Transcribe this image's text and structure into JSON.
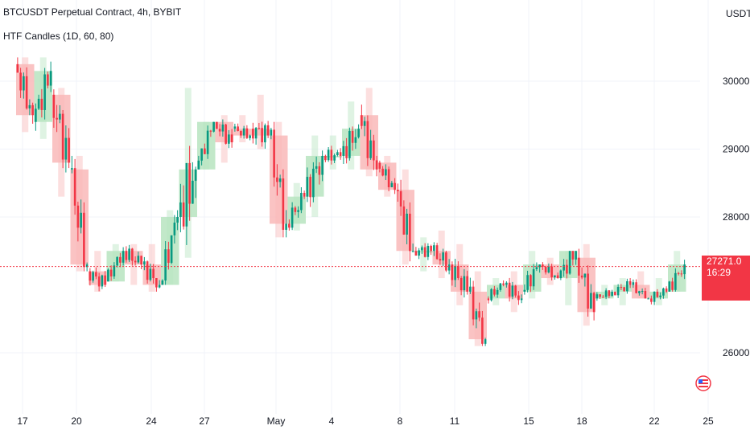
{
  "header": {
    "title": "BTCUSDT Perpetual Contract, 4h, BYBIT",
    "indicator": "HTF Candles (1D, 60, 80)",
    "currency": "USDT"
  },
  "price_badge": {
    "price": "27271.0",
    "countdown": "16:29",
    "color": "#f23645"
  },
  "colors": {
    "up": "#089981",
    "down": "#f23645",
    "htf_up_fill": "#b7e4c0",
    "htf_down_fill": "#f9b9b9",
    "grid": "#f0f3fa"
  },
  "chart_data": {
    "type": "candlestick",
    "symbol": "BTCUSDT",
    "timeframe": "4h",
    "y_ticks": [
      "30000.0",
      "29000.0",
      "28000.0",
      "26000.0"
    ],
    "y_tick_values": [
      30000,
      29000,
      28000,
      26000
    ],
    "x_ticks": [
      "17",
      "20",
      "24",
      "27",
      "May",
      "4",
      "8",
      "11",
      "15",
      "18",
      "22",
      "25"
    ],
    "current_price": 27271.0,
    "price_line_style": "dotted",
    "htf_candles": [
      {
        "t": 0,
        "o": 30250,
        "h": 30350,
        "c": 29500,
        "l": 29250
      },
      {
        "t": 1,
        "o": 29400,
        "h": 30350,
        "c": 30150,
        "l": 29150
      },
      {
        "t": 2,
        "o": 29800,
        "h": 29900,
        "c": 28800,
        "l": 28300
      },
      {
        "t": 3,
        "o": 28700,
        "h": 28900,
        "c": 27300,
        "l": 27200
      },
      {
        "t": 4,
        "o": 27200,
        "h": 27500,
        "c": 27000,
        "l": 26900
      },
      {
        "t": 5,
        "o": 27050,
        "h": 27600,
        "c": 27500,
        "l": 27050
      },
      {
        "t": 6,
        "o": 27500,
        "h": 27600,
        "c": 27300,
        "l": 27000
      },
      {
        "t": 7,
        "o": 27300,
        "h": 27600,
        "c": 27000,
        "l": 26900
      },
      {
        "t": 8,
        "o": 27000,
        "h": 28100,
        "c": 28000,
        "l": 27000
      },
      {
        "t": 9,
        "o": 28000,
        "h": 29900,
        "c": 28700,
        "l": 27400
      },
      {
        "t": 10,
        "o": 28700,
        "h": 29400,
        "c": 29400,
        "l": 28700
      },
      {
        "t": 11,
        "o": 29400,
        "h": 29500,
        "c": 29100,
        "l": 28800
      },
      {
        "t": 12,
        "o": 29300,
        "h": 29500,
        "c": 29200,
        "l": 29100
      },
      {
        "t": 13,
        "o": 29300,
        "h": 29800,
        "c": 29200,
        "l": 29000
      },
      {
        "t": 14,
        "o": 29200,
        "h": 29400,
        "c": 27900,
        "l": 27700
      },
      {
        "t": 15,
        "o": 27900,
        "h": 28500,
        "c": 28300,
        "l": 27800
      },
      {
        "t": 16,
        "o": 28300,
        "h": 29200,
        "c": 28900,
        "l": 28000
      },
      {
        "t": 17,
        "o": 28900,
        "h": 29200,
        "c": 28900,
        "l": 28700
      },
      {
        "t": 18,
        "o": 28900,
        "h": 29700,
        "c": 29300,
        "l": 28700
      },
      {
        "t": 19,
        "o": 29500,
        "h": 29900,
        "c": 28700,
        "l": 28600
      },
      {
        "t": 20,
        "o": 28800,
        "h": 28900,
        "c": 28400,
        "l": 28300
      },
      {
        "t": 21,
        "o": 28400,
        "h": 28700,
        "c": 27500,
        "l": 27300
      },
      {
        "t": 22,
        "o": 27500,
        "h": 27700,
        "c": 27500,
        "l": 27200
      },
      {
        "t": 23,
        "o": 27500,
        "h": 27800,
        "c": 27300,
        "l": 27100
      },
      {
        "t": 24,
        "o": 27300,
        "h": 27600,
        "c": 26900,
        "l": 26700
      },
      {
        "t": 25,
        "o": 26900,
        "h": 27200,
        "c": 26200,
        "l": 26100
      },
      {
        "t": 26,
        "o": 26800,
        "h": 27100,
        "c": 27000,
        "l": 26700
      },
      {
        "t": 27,
        "o": 27000,
        "h": 27200,
        "c": 26800,
        "l": 26600
      },
      {
        "t": 28,
        "o": 26900,
        "h": 27500,
        "c": 27300,
        "l": 26800
      },
      {
        "t": 29,
        "o": 27300,
        "h": 27400,
        "c": 27100,
        "l": 27000
      },
      {
        "t": 30,
        "o": 27100,
        "h": 27500,
        "c": 27500,
        "l": 26700
      },
      {
        "t": 31,
        "o": 27400,
        "h": 27600,
        "c": 26600,
        "l": 26400
      },
      {
        "t": 32,
        "o": 26800,
        "h": 27000,
        "c": 26900,
        "l": 26700
      },
      {
        "t": 33,
        "o": 26900,
        "h": 27100,
        "c": 27000,
        "l": 26700
      },
      {
        "t": 34,
        "o": 27000,
        "h": 27200,
        "c": 26800,
        "l": 26800
      },
      {
        "t": 35,
        "o": 26800,
        "h": 27100,
        "c": 26900,
        "l": 26700
      },
      {
        "t": 36,
        "o": 26900,
        "h": 27500,
        "c": 27300,
        "l": 26900
      }
    ]
  }
}
